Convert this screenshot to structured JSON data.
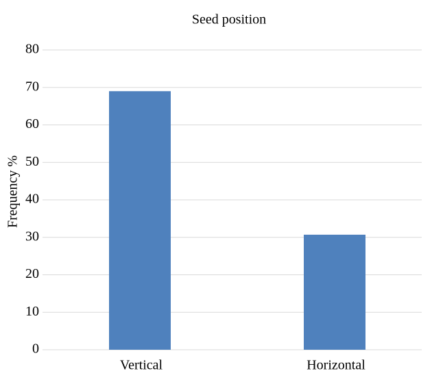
{
  "chart_data": {
    "type": "bar",
    "title": "Seed position",
    "y_label": "Frequency %",
    "categories": [
      "Vertical",
      "Horizontal"
    ],
    "values": [
      69,
      30.7
    ],
    "color": "#4f81bd",
    "ylim": [
      0,
      80
    ],
    "yticks": [
      0,
      10,
      20,
      30,
      40,
      50,
      60,
      70,
      80
    ],
    "grid": true
  }
}
